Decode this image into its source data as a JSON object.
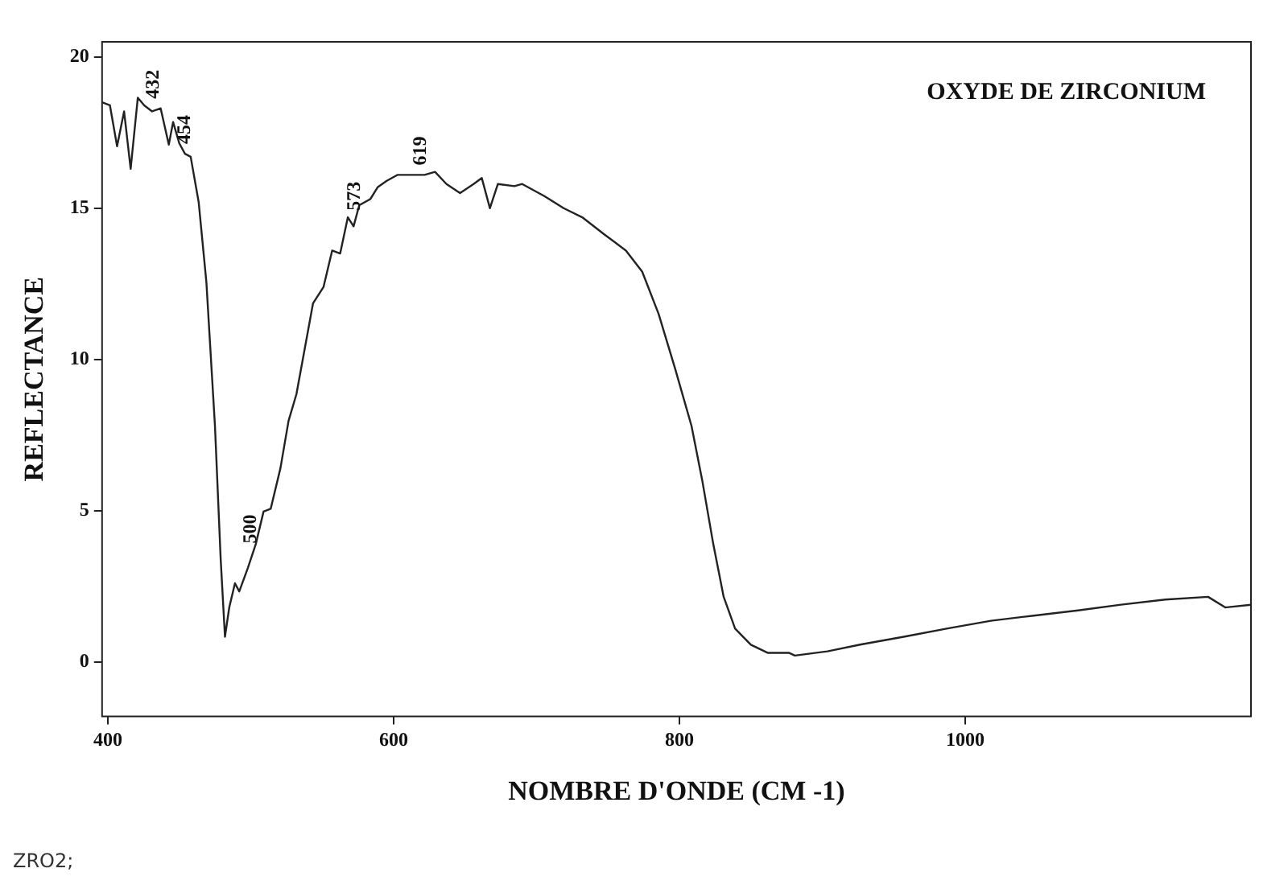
{
  "chart_data": {
    "type": "line",
    "title": "OXYDE DE ZIRCONIUM",
    "xlabel": "NOMBRE D'ONDE (CM -1)",
    "ylabel": "REFLECTANCE",
    "xlim": [
      396,
      1200
    ],
    "ylim": [
      -1.8,
      20.5
    ],
    "xticks": [
      400,
      600,
      800,
      1000
    ],
    "yticks": [
      0,
      5,
      10,
      15,
      20
    ],
    "grid": false,
    "legend": false,
    "series": [
      {
        "color": "#222222",
        "x": [
          396,
          401.5,
          406.5,
          411.4,
          416,
          421,
          425.5,
          431,
          437,
          442.7,
          445.7,
          450,
          454,
          458,
          463.6,
          469,
          475,
          479,
          482,
          485,
          489,
          492,
          498,
          503.6,
          509,
          514,
          520.8,
          526.5,
          532,
          538,
          543.6,
          551,
          557,
          562.6,
          568,
          572,
          576,
          583.7,
          589,
          595,
          602.6,
          612,
          621.7,
          629,
          637,
          646.5,
          656,
          661.7,
          667.4,
          673,
          684.6,
          690,
          705.5,
          719,
          732,
          747,
          762.6,
          774,
          785.5,
          797,
          808.5,
          816,
          823.7,
          831,
          839,
          850,
          861.7,
          876.6,
          880.8,
          903.6,
          926.5,
          957,
          987,
          1018,
          1048,
          1079,
          1109,
          1140,
          1170,
          1182,
          1200
        ],
        "values": [
          18.5,
          18.4,
          17.05,
          18.2,
          16.3,
          18.65,
          18.4,
          18.2,
          18.3,
          17.1,
          17.85,
          17.15,
          16.8,
          16.7,
          15.2,
          12.55,
          7.8,
          3.4,
          0.83,
          1.8,
          2.6,
          2.33,
          3.1,
          3.9,
          4.97,
          5.06,
          6.4,
          7.97,
          8.85,
          10.4,
          11.85,
          12.4,
          13.6,
          13.5,
          14.7,
          14.4,
          15.1,
          15.3,
          15.7,
          15.9,
          16.1,
          16.1,
          16.1,
          16.2,
          15.8,
          15.5,
          15.8,
          16.0,
          15.0,
          15.8,
          15.73,
          15.8,
          15.4,
          15.0,
          14.7,
          14.15,
          13.6,
          12.9,
          11.5,
          9.7,
          7.8,
          6.0,
          3.9,
          2.15,
          1.1,
          0.57,
          0.3,
          0.3,
          0.21,
          0.35,
          0.57,
          0.83,
          1.1,
          1.36,
          1.53,
          1.7,
          1.89,
          2.06,
          2.15,
          1.8,
          1.89
        ]
      }
    ],
    "annotations": [
      {
        "text": "432",
        "x": 432,
        "y": 18.3
      },
      {
        "text": "454",
        "x": 454,
        "y": 16.8
      },
      {
        "text": "500",
        "x": 500,
        "y": 3.6
      },
      {
        "text": "573",
        "x": 573,
        "y": 14.6
      },
      {
        "text": "619",
        "x": 619,
        "y": 16.1
      },
      "ZRO2;"
    ]
  }
}
